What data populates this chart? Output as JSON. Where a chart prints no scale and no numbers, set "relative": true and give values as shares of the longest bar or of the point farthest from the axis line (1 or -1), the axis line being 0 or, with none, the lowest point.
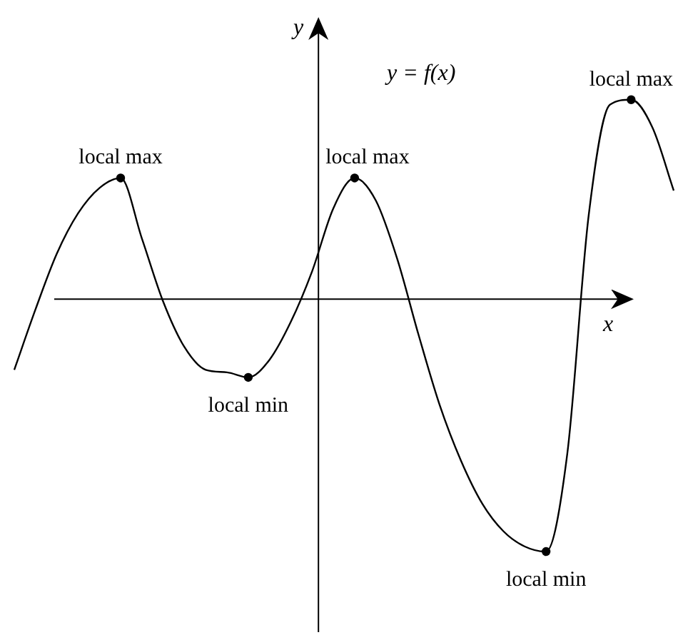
{
  "chart_data": {
    "type": "line",
    "title": "y = f(x)",
    "xlabel": "x",
    "ylabel": "y",
    "relative": true,
    "legend": false,
    "categories": [
      null,
      null,
      null,
      null,
      null,
      null,
      null,
      null,
      null,
      null,
      null,
      null,
      null,
      null,
      null,
      null,
      null,
      null,
      null,
      null,
      null,
      null,
      null,
      null,
      null,
      null,
      null,
      null,
      null,
      null,
      null,
      null
    ],
    "series": [
      {
        "color": "#000000",
        "values": [
          -0.28,
          -0.04,
          0.18,
          0.34,
          0.44,
          0.48,
          0.24,
          -0.01,
          -0.19,
          -0.28,
          -0.29,
          -0.31,
          -0.24,
          -0.09,
          0.11,
          0.36,
          0.48,
          0.39,
          0.16,
          -0.14,
          -0.42,
          -0.64,
          -0.81,
          -0.92,
          -0.98,
          -1,
          -0.61,
          0.33,
          0.77,
          0.79,
          0.68,
          0.43
        ]
      }
    ],
    "annotations": [
      "local max",
      "local min",
      "local max",
      "local min",
      "local max"
    ]
  }
}
